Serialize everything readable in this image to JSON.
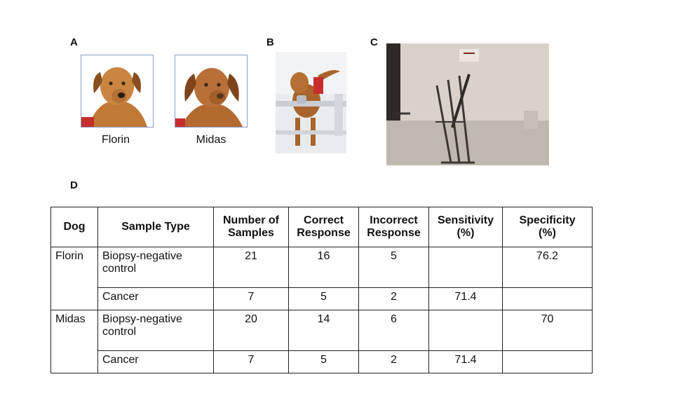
{
  "panels": {
    "a_label": "A",
    "b_label": "B",
    "c_label": "C",
    "d_label": "D"
  },
  "dogs": {
    "dog1_name": "Florin",
    "dog2_name": "Midas"
  },
  "table": {
    "headers": [
      "Dog",
      "Sample Type",
      "Number of Samples",
      "Correct Response",
      "Incorrect Response",
      "Sensitivity (%)",
      "Specificity (%)"
    ],
    "header_lines": [
      [
        "Dog",
        ""
      ],
      [
        "Sample Type",
        ""
      ],
      [
        "Number of",
        "Samples"
      ],
      [
        "Correct",
        "Response"
      ],
      [
        "Incorrect",
        "Response"
      ],
      [
        "Sensitivity",
        "(%)"
      ],
      [
        "Specificity",
        "(%)"
      ]
    ],
    "rows": [
      {
        "dog": "Florin",
        "sample_type": "Biopsy-negative control",
        "n": "21",
        "correct": "16",
        "incorrect": "5",
        "sensitivity": "",
        "specificity": "76.2"
      },
      {
        "dog": "",
        "sample_type": "Cancer",
        "n": "7",
        "correct": "5",
        "incorrect": "2",
        "sensitivity": "71.4",
        "specificity": ""
      },
      {
        "dog": "Midas",
        "sample_type": "Biopsy-negative control",
        "n": "20",
        "correct": "14",
        "incorrect": "6",
        "sensitivity": "",
        "specificity": "70"
      },
      {
        "dog": "",
        "sample_type": "Cancer",
        "n": "7",
        "correct": "5",
        "incorrect": "2",
        "sensitivity": "71.4",
        "specificity": ""
      }
    ]
  }
}
